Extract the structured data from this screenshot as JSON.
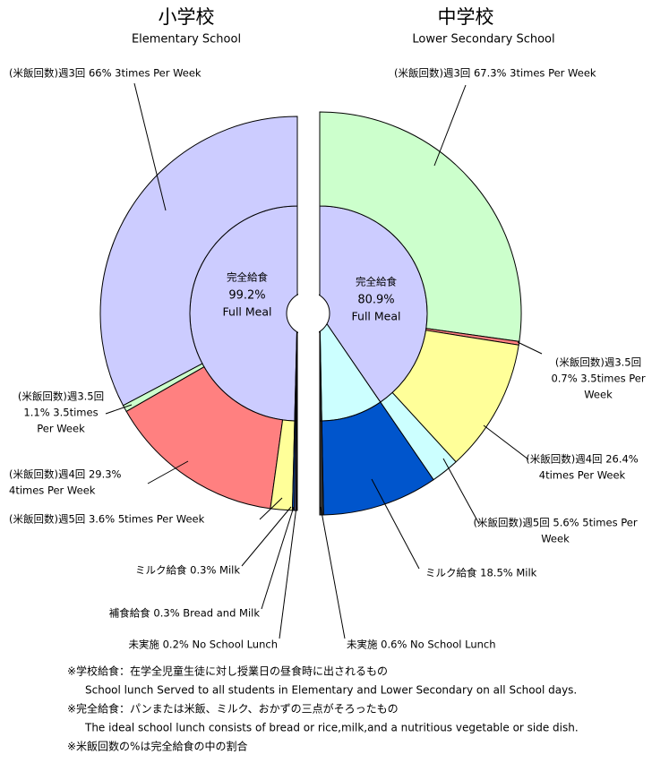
{
  "chart_data": [
    {
      "type": "half-donut",
      "side": "left",
      "title": "小学校",
      "subtitle": "Elementary School",
      "full_meal": {
        "name": "完全給食",
        "name_en": "Full Meal",
        "value": 99.2,
        "value_label": "99.2%",
        "color": "#ccccff"
      },
      "rice": {
        "values": [
          66,
          1.1,
          29.3,
          3.6
        ],
        "colors": [
          "#ccccff",
          "#ccffcc",
          "#ff8080",
          "#ffff99"
        ],
        "value_labels": [
          [
            "(米飯回数)週3回 66% 3times Per Week"
          ],
          [
            "(米飯回数)週3.5回",
            "1.1% 3.5times",
            "Per Week"
          ],
          [
            "(米飯回数)週4回 29.3%",
            "4times Per Week"
          ],
          [
            "(米飯回数)週5回 3.6% 5times Per Week"
          ]
        ]
      },
      "others": {
        "values": [
          0.3,
          0.3,
          0.2
        ],
        "colors": [
          "#0055cc",
          "#666699",
          "#333333"
        ],
        "inner_colors": [
          "#0055cc",
          "#666699",
          "#333333"
        ],
        "value_labels": [
          [
            "ミルク給食 0.3% Milk"
          ],
          [
            "補食給食 0.3% Bread and Milk"
          ],
          [
            "未実施 0.2% No School Lunch"
          ]
        ]
      }
    },
    {
      "type": "half-donut",
      "side": "right",
      "title": "中学校",
      "subtitle": "Lower Secondary School",
      "full_meal": {
        "name": "完全給食",
        "name_en": "Full Meal",
        "value": 80.9,
        "value_label": "80.9%",
        "color": "#ccccff"
      },
      "rice": {
        "values": [
          67.3,
          0.7,
          26.4,
          5.6
        ],
        "colors": [
          "#ccffcc",
          "#ff8080",
          "#ffff99",
          "#ccffff"
        ],
        "value_labels": [
          [
            "(米飯回数)週3回 67.3% 3times Per Week"
          ],
          [
            "(米飯回数)週3.5回",
            "0.7% 3.5times Per",
            "Week"
          ],
          [
            "(米飯回数)週4回 26.4%",
            "4times Per Week"
          ],
          [
            "(米飯回数)週5回 5.6% 5times Per",
            "Week"
          ]
        ]
      },
      "others": {
        "values": [
          18.5,
          0.6
        ],
        "colors": [
          "#0055cc",
          "#333333"
        ],
        "inner_colors": [
          "#ccffff",
          "#333333"
        ],
        "value_labels": [
          [
            "ミルク給食 18.5% Milk"
          ],
          [
            "未実施 0.6% No School Lunch"
          ]
        ]
      }
    }
  ],
  "notes": [
    "※学校給食：在学全児童生徒に対し授業日の昼食時に出されるもの",
    "School lunch Served to all students in Elementary and Lower Secondary on all School days.",
    "※完全給食：パンまたは米飯、ミルク、おかずの三点がそろったもの",
    "The ideal school lunch consists of bread or rice,milk,and a nutritious vegetable or side dish.",
    "※米飯回数の%は完全給食の中の割合"
  ]
}
